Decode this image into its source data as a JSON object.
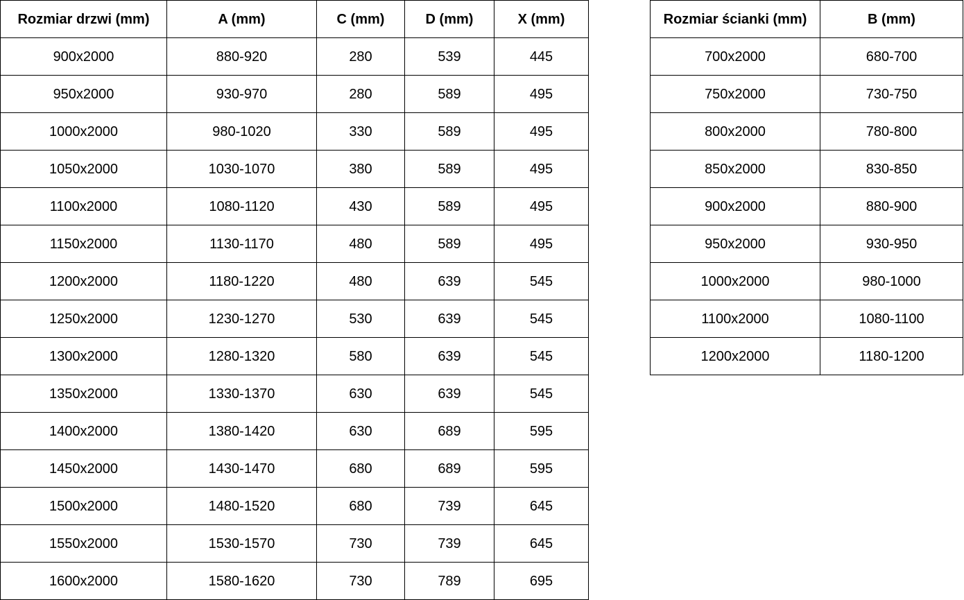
{
  "colors": {
    "background": "#ffffff",
    "border": "#000000",
    "text": "#000000"
  },
  "door_table": {
    "title": "door-sizes",
    "columns": [
      "Rozmiar drzwi (mm)",
      "A (mm)",
      "C (mm)",
      "D (mm)",
      "X (mm)"
    ],
    "rows": [
      [
        "900x2000",
        "880-920",
        "280",
        "539",
        "445"
      ],
      [
        "950x2000",
        "930-970",
        "280",
        "589",
        "495"
      ],
      [
        "1000x2000",
        "980-1020",
        "330",
        "589",
        "495"
      ],
      [
        "1050x2000",
        "1030-1070",
        "380",
        "589",
        "495"
      ],
      [
        "1100x2000",
        "1080-1120",
        "430",
        "589",
        "495"
      ],
      [
        "1150x2000",
        "1130-1170",
        "480",
        "589",
        "495"
      ],
      [
        "1200x2000",
        "1180-1220",
        "480",
        "639",
        "545"
      ],
      [
        "1250x2000",
        "1230-1270",
        "530",
        "639",
        "545"
      ],
      [
        "1300x2000",
        "1280-1320",
        "580",
        "639",
        "545"
      ],
      [
        "1350x2000",
        "1330-1370",
        "630",
        "639",
        "545"
      ],
      [
        "1400x2000",
        "1380-1420",
        "630",
        "689",
        "595"
      ],
      [
        "1450x2000",
        "1430-1470",
        "680",
        "689",
        "595"
      ],
      [
        "1500x2000",
        "1480-1520",
        "680",
        "739",
        "645"
      ],
      [
        "1550x2000",
        "1530-1570",
        "730",
        "739",
        "645"
      ],
      [
        "1600x2000",
        "1580-1620",
        "730",
        "789",
        "695"
      ]
    ]
  },
  "wall_table": {
    "title": "wall-panel-sizes",
    "columns": [
      "Rozmiar ścianki (mm)",
      "B (mm)"
    ],
    "rows": [
      [
        "700x2000",
        "680-700"
      ],
      [
        "750x2000",
        "730-750"
      ],
      [
        "800x2000",
        "780-800"
      ],
      [
        "850x2000",
        "830-850"
      ],
      [
        "900x2000",
        "880-900"
      ],
      [
        "950x2000",
        "930-950"
      ],
      [
        "1000x2000",
        "980-1000"
      ],
      [
        "1100x2000",
        "1080-1100"
      ],
      [
        "1200x2000",
        "1180-1200"
      ]
    ]
  }
}
